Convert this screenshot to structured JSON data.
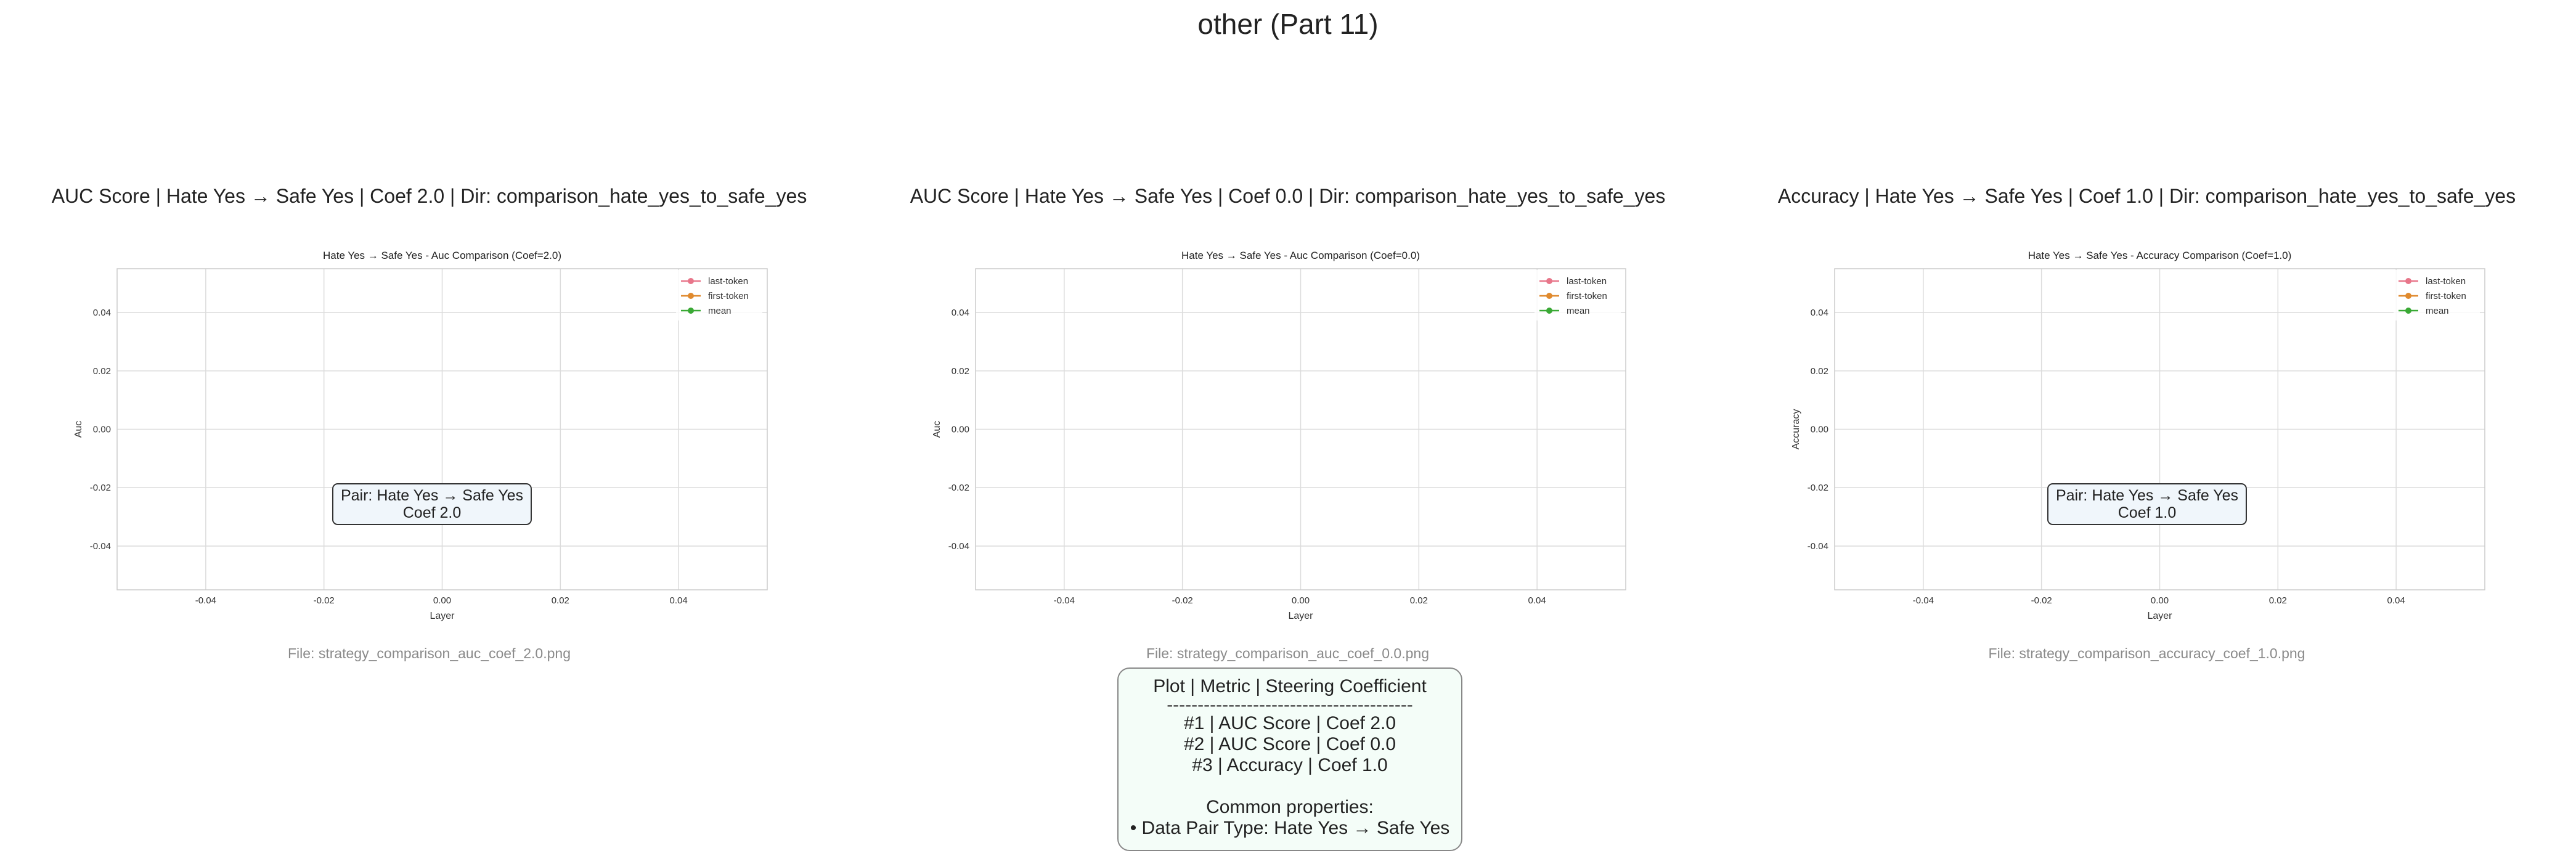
{
  "page": {
    "title": "other (Part 11)"
  },
  "colors": {
    "last_token": "#e8768a",
    "first_token": "#e08a2e",
    "mean": "#3aa935"
  },
  "panels": [
    {
      "title": "AUC Score | Hate Yes → Safe Yes | Coef 2.0 | Dir: comparison_hate_yes_to_safe_yes",
      "file": "File: strategy_comparison_auc_coef_2.0.png",
      "pair_box": {
        "line1": "Pair: Hate Yes → Safe Yes",
        "line2": "Coef 2.0"
      }
    },
    {
      "title": "AUC Score | Hate Yes → Safe Yes | Coef 0.0 | Dir: comparison_hate_yes_to_safe_yes",
      "file": "File: strategy_comparison_auc_coef_0.0.png"
    },
    {
      "title": "Accuracy | Hate Yes → Safe Yes | Coef 1.0 | Dir: comparison_hate_yes_to_safe_yes",
      "file": "File: strategy_comparison_accuracy_coef_1.0.png",
      "pair_box": {
        "line1": "Pair: Hate Yes → Safe Yes",
        "line2": "Coef 1.0"
      }
    }
  ],
  "summary": {
    "header": "Plot | Metric | Steering Coefficient",
    "separator": "----------------------------------------",
    "rows": [
      "#1 | AUC Score | Coef 2.0",
      "#2 | AUC Score | Coef 0.0",
      "#3 | Accuracy | Coef 1.0"
    ],
    "common_title": "Common properties:",
    "common_items": [
      "• Data Pair Type: Hate Yes → Safe Yes"
    ]
  },
  "chart_data": [
    {
      "type": "line",
      "title": "Hate Yes → Safe Yes - Auc Comparison (Coef=2.0)",
      "xlabel": "Layer",
      "ylabel": "Auc",
      "xlim": [
        -0.055,
        0.055
      ],
      "ylim": [
        -0.055,
        0.055
      ],
      "xticks": [
        "-0.04",
        "-0.02",
        "0.00",
        "0.02",
        "0.04"
      ],
      "yticks": [
        "0.04",
        "0.02",
        "0.00",
        "-0.02",
        "-0.04"
      ],
      "grid": true,
      "legend_position": "top-right",
      "series": [
        {
          "name": "last-token",
          "values": []
        },
        {
          "name": "first-token",
          "values": []
        },
        {
          "name": "mean",
          "values": []
        }
      ]
    },
    {
      "type": "line",
      "title": "Hate Yes → Safe Yes - Auc Comparison (Coef=0.0)",
      "xlabel": "Layer",
      "ylabel": "Auc",
      "xlim": [
        -0.055,
        0.055
      ],
      "ylim": [
        -0.055,
        0.055
      ],
      "xticks": [
        "-0.04",
        "-0.02",
        "0.00",
        "0.02",
        "0.04"
      ],
      "yticks": [
        "0.04",
        "0.02",
        "0.00",
        "-0.02",
        "-0.04"
      ],
      "grid": true,
      "legend_position": "top-right",
      "series": [
        {
          "name": "last-token",
          "values": []
        },
        {
          "name": "first-token",
          "values": []
        },
        {
          "name": "mean",
          "values": []
        }
      ]
    },
    {
      "type": "line",
      "title": "Hate Yes → Safe Yes - Accuracy Comparison (Coef=1.0)",
      "xlabel": "Layer",
      "ylabel": "Accuracy",
      "xlim": [
        -0.055,
        0.055
      ],
      "ylim": [
        -0.055,
        0.055
      ],
      "xticks": [
        "-0.04",
        "-0.02",
        "0.00",
        "0.02",
        "0.04"
      ],
      "yticks": [
        "0.04",
        "0.02",
        "0.00",
        "-0.02",
        "-0.04"
      ],
      "grid": true,
      "legend_position": "top-right",
      "series": [
        {
          "name": "last-token",
          "values": []
        },
        {
          "name": "first-token",
          "values": []
        },
        {
          "name": "mean",
          "values": []
        }
      ]
    }
  ]
}
